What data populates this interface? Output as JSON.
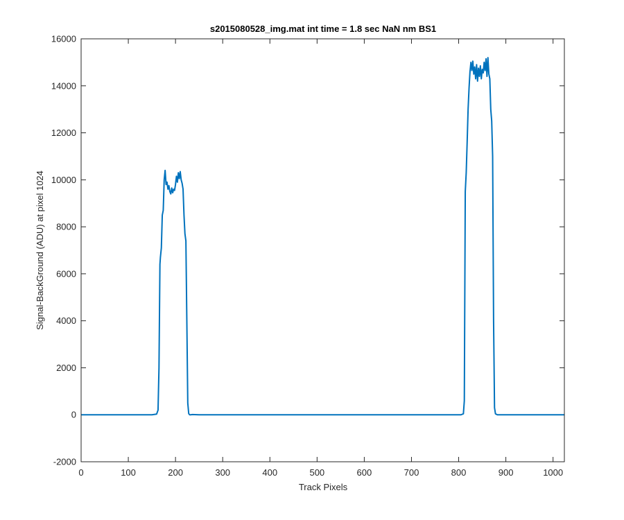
{
  "chart_data": {
    "type": "line",
    "title": "s2015080528_img.mat int time = 1.8 sec  NaN nm BS1",
    "xlabel": "Track Pixels",
    "ylabel": "Signal-BackGround (ADU) at pixel 1024",
    "xlim": [
      0,
      1024
    ],
    "ylim": [
      -2000,
      16000
    ],
    "xticks": [
      0,
      100,
      200,
      300,
      400,
      500,
      600,
      700,
      800,
      900,
      1000
    ],
    "yticks": [
      -2000,
      0,
      2000,
      4000,
      6000,
      8000,
      10000,
      12000,
      14000,
      16000
    ],
    "grid": false,
    "series": [
      {
        "color": "#0072BD",
        "x": [
          0,
          150,
          160,
          163,
          165,
          167,
          168,
          170,
          172,
          174,
          176,
          178,
          180,
          182,
          184,
          186,
          188,
          190,
          192,
          194,
          196,
          198,
          200,
          202,
          204,
          206,
          208,
          210,
          212,
          214,
          216,
          218,
          220,
          222,
          224,
          226,
          228,
          230,
          232,
          236,
          250,
          400,
          600,
          790,
          805,
          810,
          812,
          814,
          816,
          818,
          820,
          822,
          824,
          826,
          828,
          830,
          832,
          834,
          836,
          838,
          840,
          842,
          844,
          846,
          848,
          850,
          852,
          854,
          856,
          858,
          860,
          862,
          864,
          866,
          868,
          870,
          872,
          874,
          876,
          878,
          882,
          900,
          1024
        ],
        "y": [
          0,
          0,
          30,
          200,
          2000,
          6400,
          6700,
          7100,
          8500,
          8700,
          10000,
          10400,
          9800,
          9900,
          9600,
          9750,
          9500,
          9400,
          9650,
          9450,
          9600,
          9550,
          9800,
          10150,
          9900,
          10300,
          10050,
          10350,
          10000,
          9850,
          9600,
          8500,
          7700,
          7400,
          4000,
          500,
          50,
          0,
          0,
          10,
          0,
          0,
          0,
          0,
          0,
          40,
          600,
          9500,
          10300,
          11600,
          13000,
          13900,
          14600,
          15000,
          14650,
          15050,
          14500,
          14800,
          14300,
          14900,
          14200,
          14750,
          14400,
          14850,
          14300,
          14700,
          14550,
          15000,
          14650,
          15150,
          14400,
          15200,
          14500,
          14300,
          13000,
          12500,
          11000,
          4000,
          300,
          40,
          0,
          0,
          0
        ]
      }
    ]
  }
}
